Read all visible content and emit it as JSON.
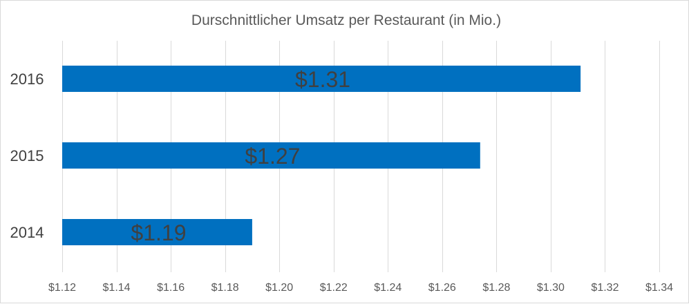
{
  "chart_data": {
    "type": "bar",
    "orientation": "horizontal",
    "title": "Durschnittlicher Umsatz per Restaurant (in Mio.)",
    "categories": [
      "2016",
      "2015",
      "2014"
    ],
    "values": [
      1.311,
      1.274,
      1.19
    ],
    "data_labels": [
      "$1.31",
      "$1.27",
      "$1.19"
    ],
    "x_ticks": [
      1.12,
      1.14,
      1.16,
      1.18,
      1.2,
      1.22,
      1.24,
      1.26,
      1.28,
      1.3,
      1.32,
      1.34
    ],
    "x_tick_labels": [
      "$1.12",
      "$1.14",
      "$1.16",
      "$1.18",
      "$1.20",
      "$1.22",
      "$1.24",
      "$1.26",
      "$1.28",
      "$1.30",
      "$1.32",
      "$1.34"
    ],
    "xlim": [
      1.12,
      1.34
    ],
    "grid": true,
    "legend": "none",
    "bar_color": "#0070C0"
  }
}
